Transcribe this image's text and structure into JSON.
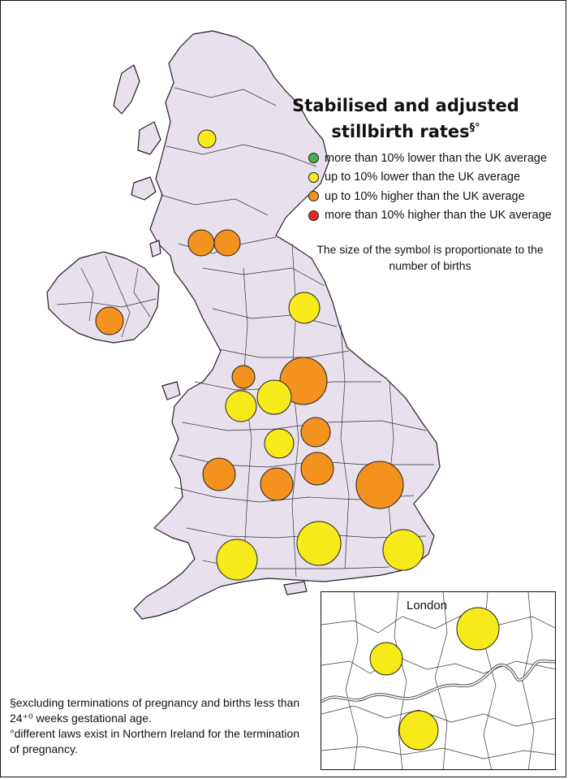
{
  "title": {
    "line1": "Stabilised and adjusted",
    "line2": "stillbirth rates",
    "marks": "§°"
  },
  "legend": {
    "items": [
      {
        "label": "more than 10% lower than the UK average",
        "color": "#4caf50"
      },
      {
        "label": "up to 10% lower than the UK average",
        "color": "#f6ea1a"
      },
      {
        "label": "up to 10% higher than the UK average",
        "color": "#f4921f"
      },
      {
        "label": "more than 10% higher than the UK average",
        "color": "#e52b24"
      }
    ],
    "size_note": "The size of the symbol is proportionate to the number of births"
  },
  "footnotes": {
    "note1": "§excluding terminations of pregnancy and births less than 24⁺⁰ weeks gestational age.",
    "note2": "°different laws exist in Northern Ireland for the termination of pregnancy."
  },
  "inset": {
    "label": "London"
  },
  "colors": {
    "land": "#e8e0ec",
    "lower": "#f6ea1a",
    "higher": "#f4921f"
  }
}
